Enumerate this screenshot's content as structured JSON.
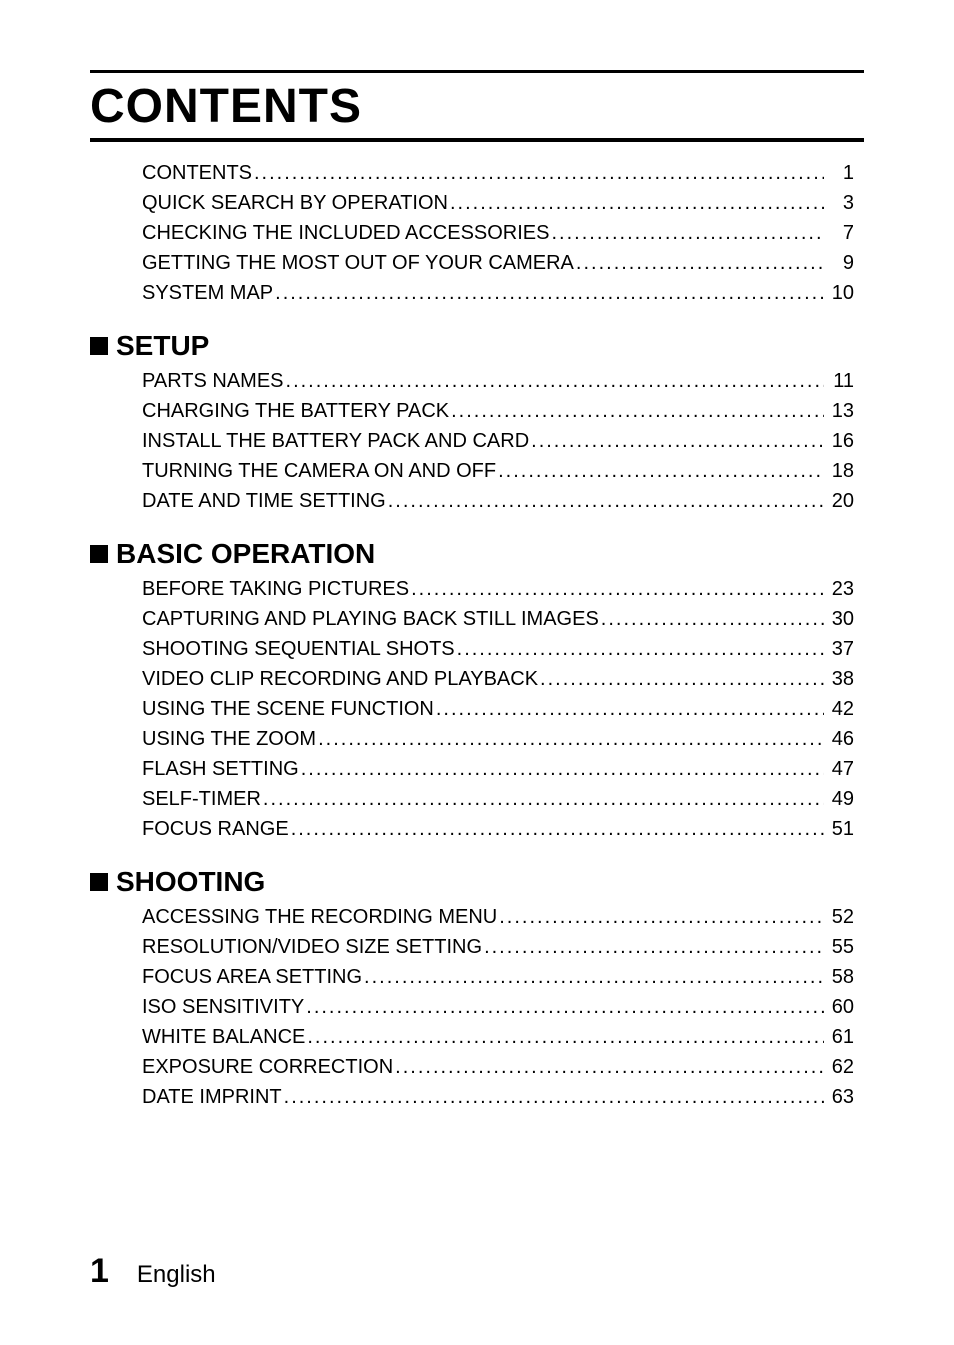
{
  "title": "CONTENTS",
  "intro_items": [
    {
      "label": "CONTENTS",
      "page": "1"
    },
    {
      "label": "QUICK SEARCH BY OPERATION",
      "page": "3"
    },
    {
      "label": "CHECKING THE INCLUDED ACCESSORIES",
      "page": "7"
    },
    {
      "label": "GETTING THE MOST OUT OF YOUR CAMERA",
      "page": "9"
    },
    {
      "label": "SYSTEM MAP",
      "page": "10"
    }
  ],
  "sections": [
    {
      "header": "SETUP",
      "items": [
        {
          "label": "PARTS NAMES",
          "page": "11"
        },
        {
          "label": "CHARGING THE BATTERY PACK",
          "page": "13"
        },
        {
          "label": "INSTALL THE BATTERY PACK AND CARD",
          "page": "16"
        },
        {
          "label": "TURNING THE CAMERA ON AND OFF",
          "page": "18"
        },
        {
          "label": "DATE AND TIME SETTING",
          "page": "20"
        }
      ]
    },
    {
      "header": "BASIC OPERATION",
      "items": [
        {
          "label": "BEFORE TAKING PICTURES",
          "page": "23"
        },
        {
          "label": "CAPTURING AND PLAYING BACK STILL IMAGES",
          "page": "30"
        },
        {
          "label": "SHOOTING SEQUENTIAL SHOTS",
          "page": "37"
        },
        {
          "label": "VIDEO CLIP RECORDING AND PLAYBACK",
          "page": "38"
        },
        {
          "label": "USING THE SCENE FUNCTION",
          "page": "42"
        },
        {
          "label": "USING THE ZOOM",
          "page": "46"
        },
        {
          "label": "FLASH SETTING",
          "page": "47"
        },
        {
          "label": "SELF-TIMER",
          "page": "49"
        },
        {
          "label": "FOCUS RANGE",
          "page": "51"
        }
      ]
    },
    {
      "header": "SHOOTING",
      "items": [
        {
          "label": "ACCESSING THE RECORDING MENU",
          "page": "52"
        },
        {
          "label": "RESOLUTION/VIDEO SIZE SETTING",
          "page": "55"
        },
        {
          "label": "FOCUS AREA SETTING",
          "page": "58"
        },
        {
          "label": "ISO SENSITIVITY",
          "page": "60"
        },
        {
          "label": "WHITE BALANCE",
          "page": "61"
        },
        {
          "label": "EXPOSURE CORRECTION",
          "page": "62"
        },
        {
          "label": "DATE IMPRINT",
          "page": "63"
        }
      ]
    }
  ],
  "footer": {
    "page_number": "1",
    "language": "English"
  }
}
